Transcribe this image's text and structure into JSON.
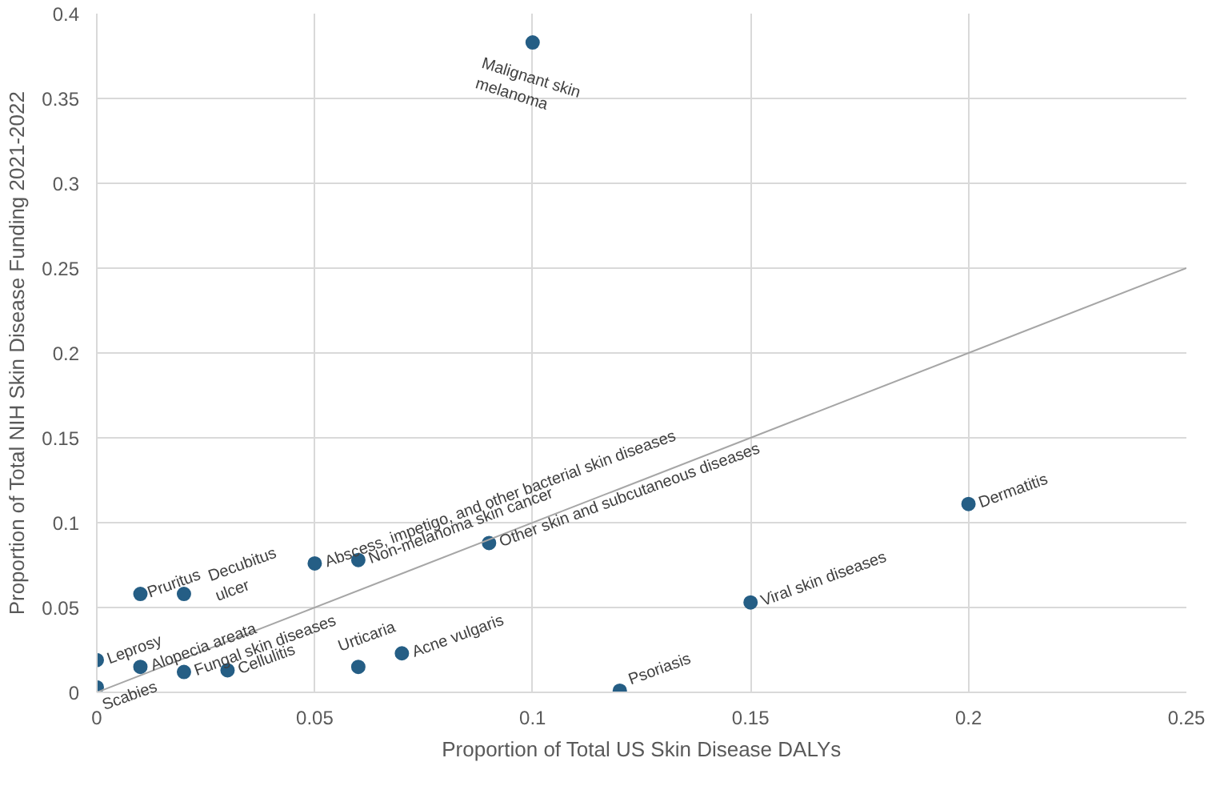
{
  "chart_data": {
    "type": "scatter",
    "xlabel": "Proportion of Total US Skin Disease DALYs",
    "ylabel": "Proportion of Total NIH Skin Disease Funding 2021-2022",
    "series": [
      {
        "marker": "circle",
        "color": "#255e85",
        "x": [
          0.1,
          0.05,
          0.06,
          0.09,
          0.01,
          0.02,
          0,
          0.01,
          0.02,
          0.03,
          0,
          0.06,
          0.07,
          0.12,
          0.15,
          0.2
        ],
        "values": [
          0.383,
          0.076,
          0.078,
          0.088,
          0.058,
          0.058,
          0.019,
          0.015,
          0.012,
          0.013,
          0.003,
          0.015,
          0.023,
          0.001,
          0.053,
          0.111
        ]
      },
      {
        "type": "line",
        "marker": "none",
        "color": "#a6a6a6",
        "x": [
          0,
          0.25
        ],
        "values": [
          0,
          0.25
        ]
      }
    ],
    "annotations": [
      {
        "text": "Malignant skin\nmelanoma",
        "x": 0.1,
        "y": 0.383
      },
      {
        "text": "Abscess, impetigo, and other bacterial skin diseases",
        "x": 0.05,
        "y": 0.076
      },
      {
        "text": "Non-melanoma skin cancer",
        "x": 0.06,
        "y": 0.078
      },
      {
        "text": "Other skin and subcutaneous diseases",
        "x": 0.09,
        "y": 0.088
      },
      {
        "text": "Pruritus",
        "x": 0.01,
        "y": 0.058
      },
      {
        "text": "Decubitus\nulcer",
        "x": 0.02,
        "y": 0.058
      },
      {
        "text": "Leprosy",
        "x": 0,
        "y": 0.019
      },
      {
        "text": "Alopecia areata",
        "x": 0.01,
        "y": 0.015
      },
      {
        "text": "Fungal skin diseases",
        "x": 0.02,
        "y": 0.012
      },
      {
        "text": "Cellulitis",
        "x": 0.03,
        "y": 0.013
      },
      {
        "text": "Scabies",
        "x": 0,
        "y": 0.003
      },
      {
        "text": "Urticaria",
        "x": 0.06,
        "y": 0.015
      },
      {
        "text": "Acne vulgaris",
        "x": 0.07,
        "y": 0.023
      },
      {
        "text": "Psoriasis",
        "x": 0.12,
        "y": 0.001
      },
      {
        "text": "Viral skin diseases",
        "x": 0.15,
        "y": 0.053
      },
      {
        "text": "Dermatitis",
        "x": 0.2,
        "y": 0.111
      }
    ],
    "xlim": [
      0,
      0.25
    ],
    "ylim": [
      0,
      0.4
    ],
    "xticks": [
      0,
      0.05,
      0.1,
      0.15,
      0.2,
      0.25
    ],
    "yticks": [
      0,
      0.05,
      0.1,
      0.15,
      0.2,
      0.25,
      0.3,
      0.35,
      0.4
    ],
    "grid": true
  }
}
